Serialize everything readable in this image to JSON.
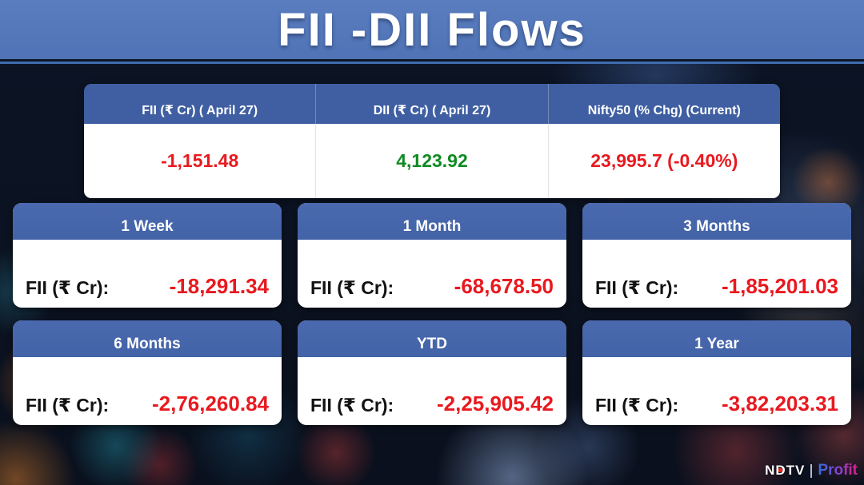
{
  "title": "FII -DII Flows",
  "summary_table": {
    "columns": [
      {
        "header": "FII (₹ Cr) ( April 27)",
        "value": "-1,151.48",
        "value_color": "#e8191f"
      },
      {
        "header": "DII (₹ Cr) ( April 27)",
        "value": "4,123.92",
        "value_color": "#0f8a22"
      },
      {
        "header": "Nifty50 (% Chg) (Current)",
        "value": "23,995.7 (-0.40%)",
        "value_color": "#e8191f"
      }
    ]
  },
  "cards": [
    {
      "period": "1 Week",
      "label": "FII (₹ Cr):",
      "value": "-18,291.34"
    },
    {
      "period": "1 Month",
      "label": "FII (₹ Cr):",
      "value": "-68,678.50"
    },
    {
      "period": "3 Months",
      "label": "FII (₹ Cr):",
      "value": "-1,85,201.03"
    },
    {
      "period": "6 Months",
      "label": "FII (₹ Cr):",
      "value": "-2,76,260.84"
    },
    {
      "period": "YTD",
      "label": "FII (₹ Cr):",
      "value": "-2,25,905.42"
    },
    {
      "period": "1 Year",
      "label": "FII (₹ Cr):",
      "value": "-3,82,203.31"
    }
  ],
  "brand": {
    "ndtv": "NDTV",
    "profit": "Profit"
  },
  "colors": {
    "banner_blue": "#4f73b6",
    "table_header_blue": "#3f5fa2",
    "card_header_blue": "#4363a8",
    "negative_red": "#e8191f",
    "positive_green": "#0f8a22",
    "background_navy": "#0b1322"
  },
  "chart_data": {
    "type": "table",
    "title": "FII -DII Flows",
    "summary": {
      "columns": [
        "FII (₹ Cr) ( April 27)",
        "DII (₹ Cr) ( April 27)",
        "Nifty50 (% Chg) (Current)"
      ],
      "values": [
        "-1,151.48",
        "4,123.92",
        "23,995.7 (-0.40%)"
      ]
    },
    "fii_flows_by_period": {
      "categories": [
        "1 Week",
        "1 Month",
        "3 Months",
        "6 Months",
        "YTD",
        "1 Year"
      ],
      "values_rs_cr": [
        -18291.34,
        -68678.5,
        -185201.03,
        -276260.84,
        -225905.42,
        -382203.31
      ]
    },
    "fii_april27_rs_cr": -1151.48,
    "dii_april27_rs_cr": 4123.92,
    "nifty50_current": 23995.7,
    "nifty50_pct_chg": -0.4
  }
}
